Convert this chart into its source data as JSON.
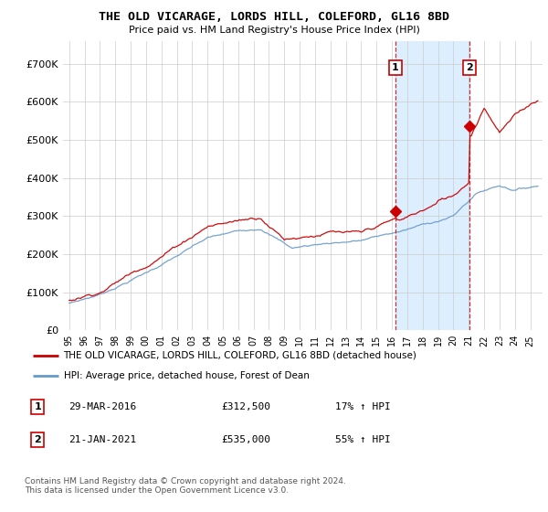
{
  "title": "THE OLD VICARAGE, LORDS HILL, COLEFORD, GL16 8BD",
  "subtitle": "Price paid vs. HM Land Registry's House Price Index (HPI)",
  "legend_line1": "THE OLD VICARAGE, LORDS HILL, COLEFORD, GL16 8BD (detached house)",
  "legend_line2": "HPI: Average price, detached house, Forest of Dean",
  "annotation1_date": "29-MAR-2016",
  "annotation1_price": "£312,500",
  "annotation1_hpi": "17% ↑ HPI",
  "annotation2_date": "21-JAN-2021",
  "annotation2_price": "£535,000",
  "annotation2_hpi": "55% ↑ HPI",
  "footer": "Contains HM Land Registry data © Crown copyright and database right 2024.\nThis data is licensed under the Open Government Licence v3.0.",
  "red_color": "#cc0000",
  "blue_color": "#6699cc",
  "shade_color": "#ddeeff",
  "vline_color": "#cc0000",
  "ytick_labels": [
    "£0",
    "£100K",
    "£200K",
    "£300K",
    "£400K",
    "£500K",
    "£600K",
    "£700K"
  ],
  "yticks": [
    0,
    100000,
    200000,
    300000,
    400000,
    500000,
    600000,
    700000
  ],
  "ylim": [
    0,
    760000
  ],
  "sale1_year": 2016.23,
  "sale1_price": 312500,
  "sale2_year": 2021.05,
  "sale2_price": 535000,
  "xmin": 1994.6,
  "xmax": 2025.8
}
